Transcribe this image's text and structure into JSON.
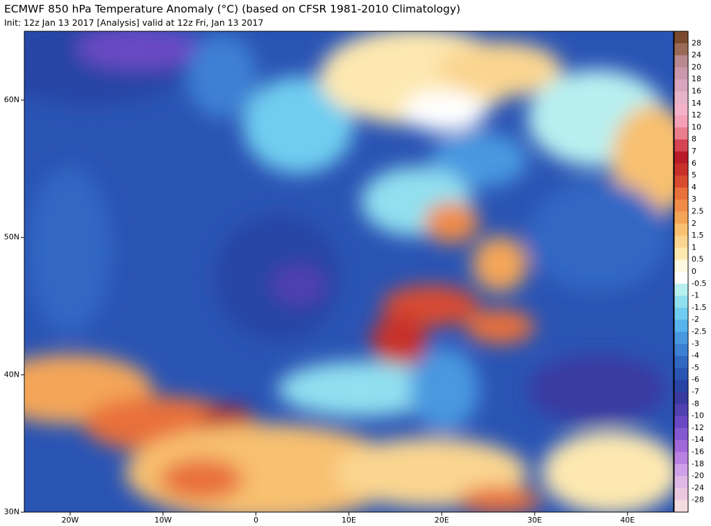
{
  "header": {
    "title": "ECMWF 850 hPa Temperature Anomaly (°C) (based on CFSR 1981-2010 Climatology)",
    "subtitle": "Init: 12z Jan 13 2017  [Analysis]   valid at 12z Fri, Jan 13 2017"
  },
  "map": {
    "lat_labels": [
      "60N",
      "50N",
      "40N",
      "30N"
    ],
    "lon_labels": [
      "20W",
      "10W",
      "0",
      "10E",
      "20E",
      "30E",
      "40E"
    ]
  },
  "colorbar": {
    "labels": [
      "28",
      "24",
      "20",
      "18",
      "16",
      "14",
      "12",
      "10",
      "8",
      "7",
      "6",
      "5",
      "4",
      "3",
      "2.5",
      "2",
      "1.5",
      "1",
      "0.5",
      "0",
      "-0.5",
      "-1",
      "-1.5",
      "-2",
      "-2.5",
      "-3",
      "-4",
      "-5",
      "-6",
      "-7",
      "-8",
      "-10",
      "-12",
      "-14",
      "-16",
      "-18",
      "-20",
      "-24",
      "-28"
    ],
    "colors": [
      "#7b4a2e",
      "#9a6a58",
      "#b88a90",
      "#c998aa",
      "#d8a6bc",
      "#e6b4c8",
      "#f2b2c8",
      "#f5a0b6",
      "#ea7f8e",
      "#d44452",
      "#b81c28",
      "#c8302a",
      "#d84b30",
      "#e8703a",
      "#f08c48",
      "#f4a658",
      "#f8c070",
      "#fad590",
      "#fde8b0",
      "#fff8e0",
      "#ffffff",
      "#b8f0f0",
      "#90e0f0",
      "#70cdf0",
      "#58b4ec",
      "#4898e0",
      "#3c80d4",
      "#3068c4",
      "#2a54b4",
      "#2844a4",
      "#3a3aa0",
      "#5040b0",
      "#6a48c4",
      "#8458d0",
      "#a068d8",
      "#b880e0",
      "#d0a0e8",
      "#e0b8e8",
      "#ecc8e0",
      "#f4dce0"
    ]
  }
}
